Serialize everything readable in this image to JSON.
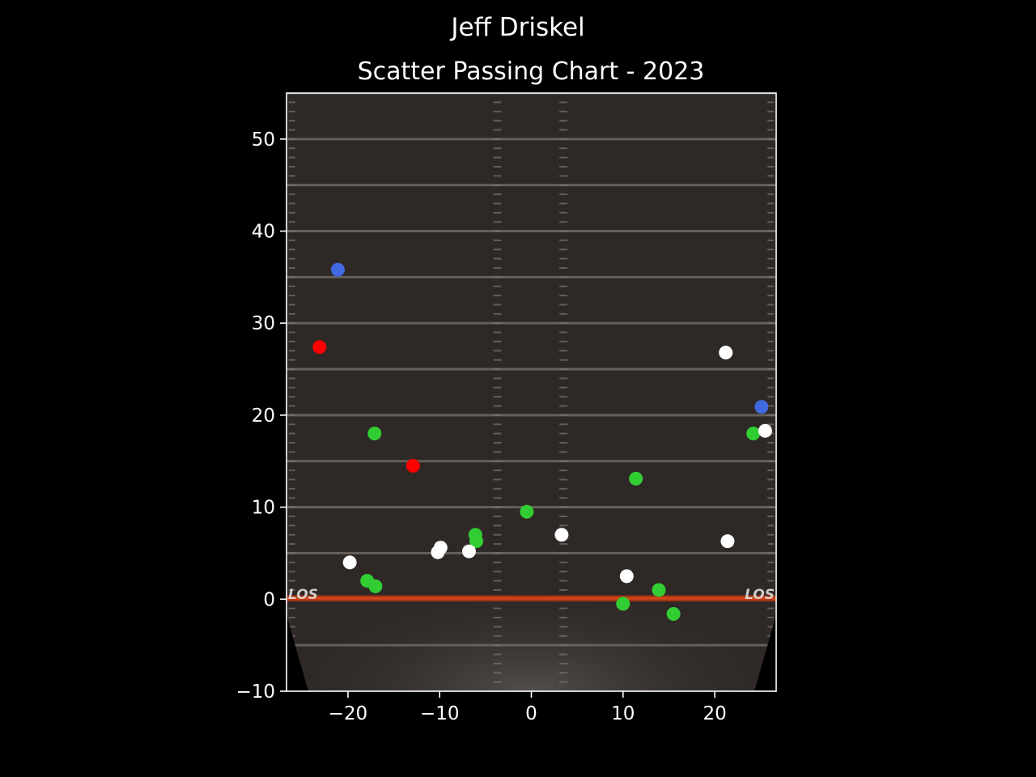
{
  "figure": {
    "suptitle": "Jeff Driskel",
    "title": "Scatter Passing Chart - 2023",
    "background": "#000000"
  },
  "chart_data": {
    "type": "scatter",
    "title": "Scatter Passing Chart - 2023",
    "suptitle": "Jeff Driskel",
    "xlabel": "",
    "ylabel": "",
    "xlim": [
      -26.7,
      26.7
    ],
    "ylim": [
      -10,
      55
    ],
    "xticks": [
      -20,
      -10,
      0,
      10,
      20
    ],
    "yticks": [
      -10,
      0,
      10,
      20,
      30,
      40,
      50
    ],
    "xtick_labels": [
      "−20",
      "−10",
      "0",
      "10",
      "20"
    ],
    "ytick_labels": [
      "−10",
      "0",
      "10",
      "20",
      "30",
      "40",
      "50"
    ],
    "grid": false,
    "background_image": "football field, line of scrimmage at 0",
    "field_text": {
      "los_left": "LOS",
      "los_right": "LOS"
    },
    "colors": {
      "green": "#32cd32",
      "white": "#ffffff",
      "red": "#ff0000",
      "blue": "#4169e1",
      "los_line": "#d2401e",
      "field": "#2e2826",
      "axes_frame": "#ffffff"
    },
    "series": [
      {
        "color": "#32cd32",
        "points": [
          {
            "x": -17.1,
            "y": 18.0
          },
          {
            "x": -17.9,
            "y": 2.0
          },
          {
            "x": -17.0,
            "y": 1.4
          },
          {
            "x": -6.1,
            "y": 7.0
          },
          {
            "x": -6.0,
            "y": 6.3
          },
          {
            "x": -0.5,
            "y": 9.5
          },
          {
            "x": 11.4,
            "y": 13.1
          },
          {
            "x": 10.0,
            "y": -0.5
          },
          {
            "x": 13.9,
            "y": 1.0
          },
          {
            "x": 15.5,
            "y": -1.6
          },
          {
            "x": 24.2,
            "y": 18.0
          }
        ]
      },
      {
        "color": "#ffffff",
        "points": [
          {
            "x": -19.8,
            "y": 4.0
          },
          {
            "x": -10.2,
            "y": 5.1
          },
          {
            "x": -9.9,
            "y": 5.6
          },
          {
            "x": -6.8,
            "y": 5.2
          },
          {
            "x": 3.3,
            "y": 7.0
          },
          {
            "x": 10.4,
            "y": 2.5
          },
          {
            "x": 21.2,
            "y": 26.8
          },
          {
            "x": 21.4,
            "y": 6.3
          },
          {
            "x": 25.5,
            "y": 18.3
          }
        ]
      },
      {
        "color": "#ff0000",
        "points": [
          {
            "x": -23.1,
            "y": 27.4
          },
          {
            "x": -12.9,
            "y": 14.5
          }
        ]
      },
      {
        "color": "#4169e1",
        "points": [
          {
            "x": -21.1,
            "y": 35.8
          },
          {
            "x": 25.1,
            "y": 20.9
          }
        ]
      }
    ]
  }
}
